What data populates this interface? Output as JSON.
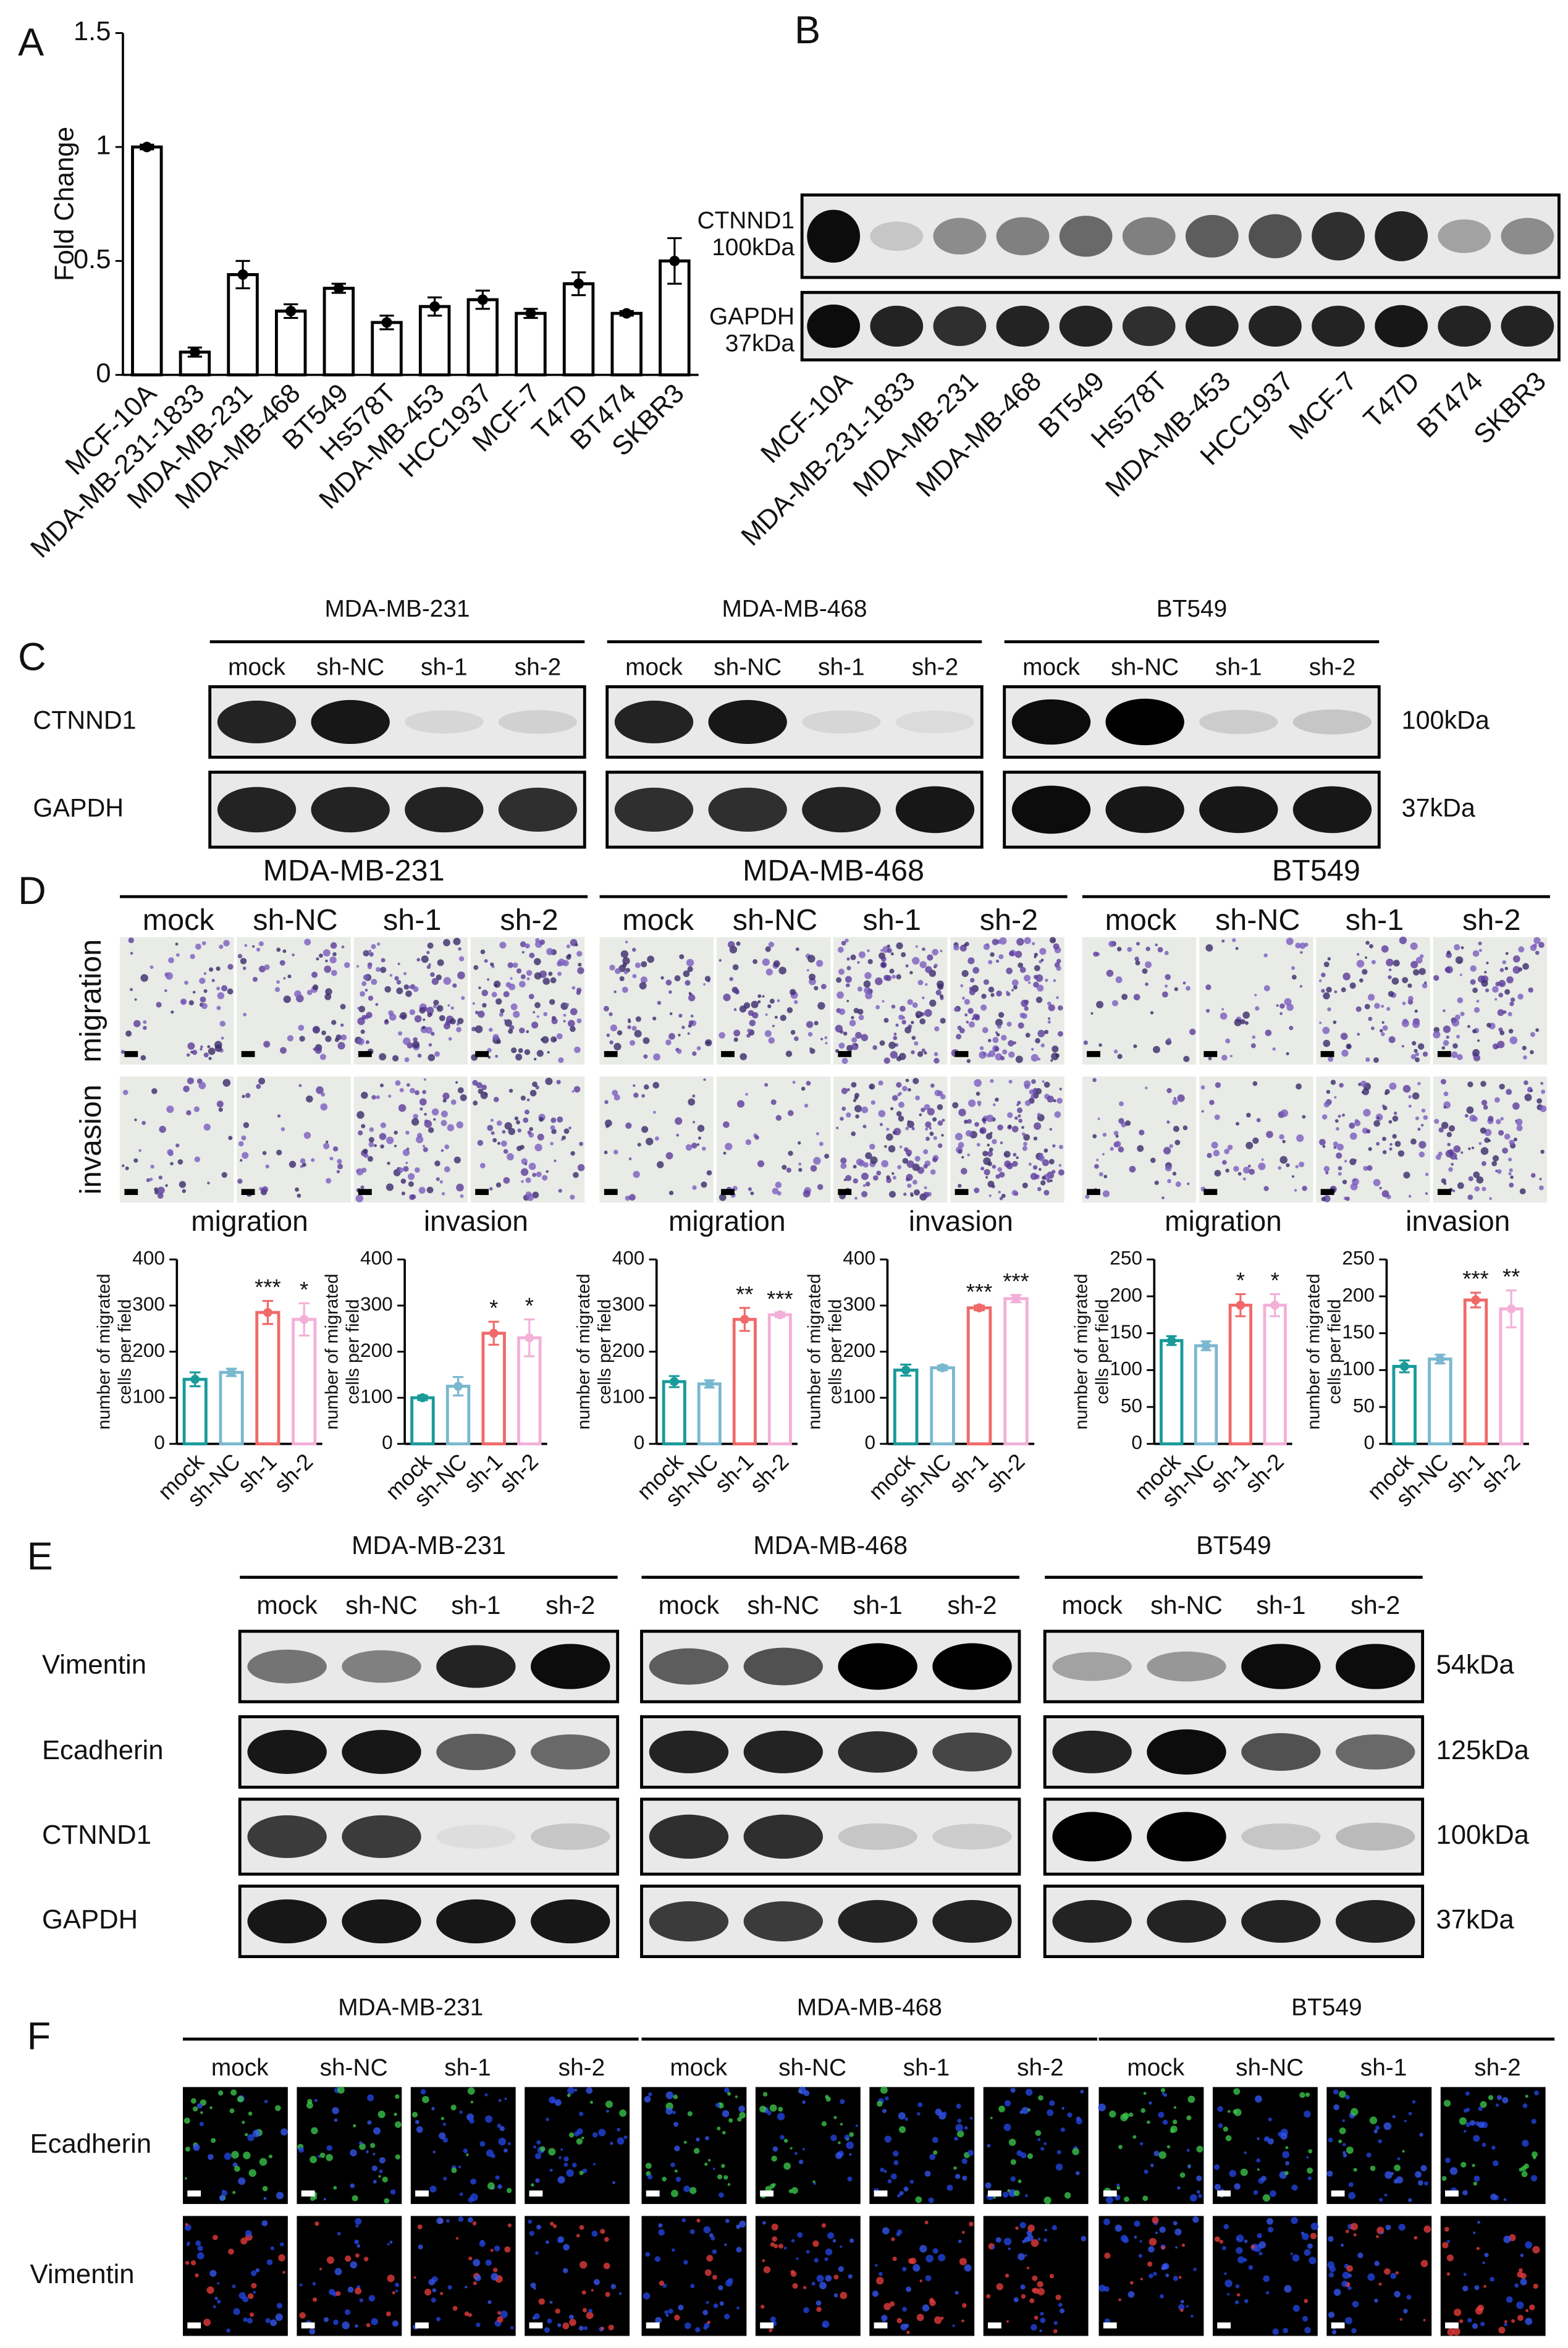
{
  "figure": {
    "A": {
      "label": "A"
    },
    "B": {
      "label": "B",
      "rows": [
        {
          "protein": "CTNND1",
          "size": "100kDa"
        },
        {
          "protein": "GAPDH",
          "size": "37kDa"
        }
      ],
      "lanes": [
        "MCF-10A",
        "MDA-MB-231-1833",
        "MDA-MB-231",
        "MDA-MB-468",
        "BT549",
        "Hs578T",
        "MDA-MB-453",
        "HCC1937",
        "MCF-7",
        "T47D",
        "BT474",
        "SKBR3"
      ]
    },
    "C": {
      "label": "C",
      "groups": [
        {
          "name": "MDA-MB-231",
          "lanes": [
            "mock",
            "sh-NC",
            "sh-1",
            "sh-2"
          ]
        },
        {
          "name": "MDA-MB-468",
          "lanes": [
            "mock",
            "sh-NC",
            "sh-1",
            "sh-2"
          ]
        },
        {
          "name": "BT549",
          "lanes": [
            "mock",
            "sh-NC",
            "sh-1",
            "sh-2"
          ]
        }
      ],
      "rows": [
        "CTNND1",
        "GAPDH"
      ],
      "sizes": [
        "100kDa",
        "37kDa"
      ]
    },
    "D": {
      "label": "D",
      "groups": [
        {
          "name": "MDA-MB-231",
          "lanes": [
            "mock",
            "sh-NC",
            "sh-1",
            "sh-2"
          ]
        },
        {
          "name": "MDA-MB-468",
          "lanes": [
            "mock",
            "sh-NC",
            "sh-1",
            "sh-2"
          ]
        },
        {
          "name": "BT549",
          "lanes": [
            "mock",
            "sh-NC",
            "sh-1",
            "sh-2"
          ]
        }
      ],
      "rows": [
        "migration",
        "invasion"
      ]
    },
    "E": {
      "label": "E",
      "groups": [
        {
          "name": "MDA-MB-231",
          "lanes": [
            "mock",
            "sh-NC",
            "sh-1",
            "sh-2"
          ]
        },
        {
          "name": "MDA-MB-468",
          "lanes": [
            "mock",
            "sh-NC",
            "sh-1",
            "sh-2"
          ]
        },
        {
          "name": "BT549",
          "lanes": [
            "mock",
            "sh-NC",
            "sh-1",
            "sh-2"
          ]
        }
      ],
      "rows": [
        "Vimentin",
        "Ecadherin",
        "CTNND1",
        "GAPDH"
      ],
      "sizes": [
        "54kDa",
        "125kDa",
        "100kDa",
        "37kDa"
      ]
    },
    "F": {
      "label": "F",
      "groups": [
        {
          "name": "MDA-MB-231",
          "lanes": [
            "mock",
            "sh-NC",
            "sh-1",
            "sh-2"
          ]
        },
        {
          "name": "MDA-MB-468",
          "lanes": [
            "mock",
            "sh-NC",
            "sh-1",
            "sh-2"
          ]
        },
        {
          "name": "BT549",
          "lanes": [
            "mock",
            "sh-NC",
            "sh-1",
            "sh-2"
          ]
        }
      ],
      "rows": [
        "Ecadherin",
        "Vimentin"
      ]
    }
  },
  "chart_data": [
    {
      "type": "bar",
      "ylabel": [
        "Fold Change"
      ],
      "categories": [
        "MCF-10A",
        "MDA-MB-231-1833",
        "MDA-MB-231",
        "MDA-MB-468",
        "BT549",
        "Hs578T",
        "MDA-MB-453",
        "HCC1937",
        "MCF-7",
        "T47D",
        "BT474",
        "SKBR3"
      ],
      "values": [
        1.0,
        0.1,
        0.44,
        0.28,
        0.38,
        0.23,
        0.3,
        0.33,
        0.27,
        0.4,
        0.27,
        0.5
      ],
      "errors": [
        0.01,
        0.02,
        0.06,
        0.03,
        0.02,
        0.03,
        0.04,
        0.04,
        0.02,
        0.05,
        0.01,
        0.1
      ],
      "color": "#000000",
      "ylim": [
        0,
        1.5
      ],
      "yticks": [
        0,
        0.5,
        1,
        1.5
      ]
    },
    {
      "type": "bar",
      "title": "migration",
      "ylabel": [
        "number of migrated",
        "cells per field"
      ],
      "categories": [
        "mock",
        "sh-NC",
        "sh-1",
        "sh-2"
      ],
      "values": [
        140,
        155,
        285,
        270
      ],
      "errors": [
        15,
        8,
        25,
        35
      ],
      "colors": [
        "#1a9a9a",
        "#7ab8cf",
        "#f06a6a",
        "#f3b0d8"
      ],
      "significance": [
        null,
        null,
        "***",
        "*"
      ],
      "ylim": [
        0,
        400
      ],
      "yticks": [
        0,
        100,
        200,
        300,
        400
      ]
    },
    {
      "type": "bar",
      "title": "invasion",
      "ylabel": [
        "number of migrated",
        "cells per field"
      ],
      "categories": [
        "mock",
        "sh-NC",
        "sh-1",
        "sh-2"
      ],
      "values": [
        100,
        125,
        240,
        230
      ],
      "errors": [
        5,
        20,
        25,
        40
      ],
      "colors": [
        "#1a9a9a",
        "#7ab8cf",
        "#f06a6a",
        "#f3b0d8"
      ],
      "significance": [
        null,
        null,
        "*",
        "*"
      ],
      "ylim": [
        0,
        400
      ],
      "yticks": [
        0,
        100,
        200,
        300,
        400
      ]
    },
    {
      "type": "bar",
      "title": "migration",
      "ylabel": [
        "number of migrated",
        "cells per field"
      ],
      "categories": [
        "mock",
        "sh-NC",
        "sh-1",
        "sh-2"
      ],
      "values": [
        135,
        130,
        270,
        280
      ],
      "errors": [
        12,
        8,
        25,
        5
      ],
      "colors": [
        "#1a9a9a",
        "#7ab8cf",
        "#f06a6a",
        "#f3b0d8"
      ],
      "significance": [
        null,
        null,
        "**",
        "***"
      ],
      "ylim": [
        0,
        400
      ],
      "yticks": [
        0,
        100,
        200,
        300,
        400
      ]
    },
    {
      "type": "bar",
      "title": "invasion",
      "ylabel": [
        "number of migrated",
        "cells per field"
      ],
      "categories": [
        "mock",
        "sh-NC",
        "sh-1",
        "sh-2"
      ],
      "values": [
        160,
        165,
        295,
        315
      ],
      "errors": [
        12,
        5,
        5,
        8
      ],
      "colors": [
        "#1a9a9a",
        "#7ab8cf",
        "#f06a6a",
        "#f3b0d8"
      ],
      "significance": [
        null,
        null,
        "***",
        "***"
      ],
      "ylim": [
        0,
        400
      ],
      "yticks": [
        0,
        100,
        200,
        300,
        400
      ]
    },
    {
      "type": "bar",
      "title": "migration",
      "ylabel": [
        "number of migrated",
        "cells per field"
      ],
      "categories": [
        "mock",
        "sh-NC",
        "sh-1",
        "sh-2"
      ],
      "values": [
        140,
        133,
        188,
        188
      ],
      "errors": [
        6,
        6,
        15,
        15
      ],
      "colors": [
        "#1a9a9a",
        "#7ab8cf",
        "#f06a6a",
        "#f3b0d8"
      ],
      "significance": [
        null,
        null,
        "*",
        "*"
      ],
      "ylim": [
        0,
        250
      ],
      "yticks": [
        0,
        50,
        100,
        150,
        200,
        250
      ]
    },
    {
      "type": "bar",
      "title": "invasion",
      "ylabel": [
        "number of migrated",
        "cells per field"
      ],
      "categories": [
        "mock",
        "sh-NC",
        "sh-1",
        "sh-2"
      ],
      "values": [
        105,
        115,
        195,
        183
      ],
      "errors": [
        8,
        6,
        10,
        25
      ],
      "colors": [
        "#1a9a9a",
        "#7ab8cf",
        "#f06a6a",
        "#f3b0d8"
      ],
      "significance": [
        null,
        null,
        "***",
        "**"
      ],
      "ylim": [
        0,
        250
      ],
      "yticks": [
        0,
        50,
        100,
        150,
        200,
        250
      ]
    }
  ]
}
